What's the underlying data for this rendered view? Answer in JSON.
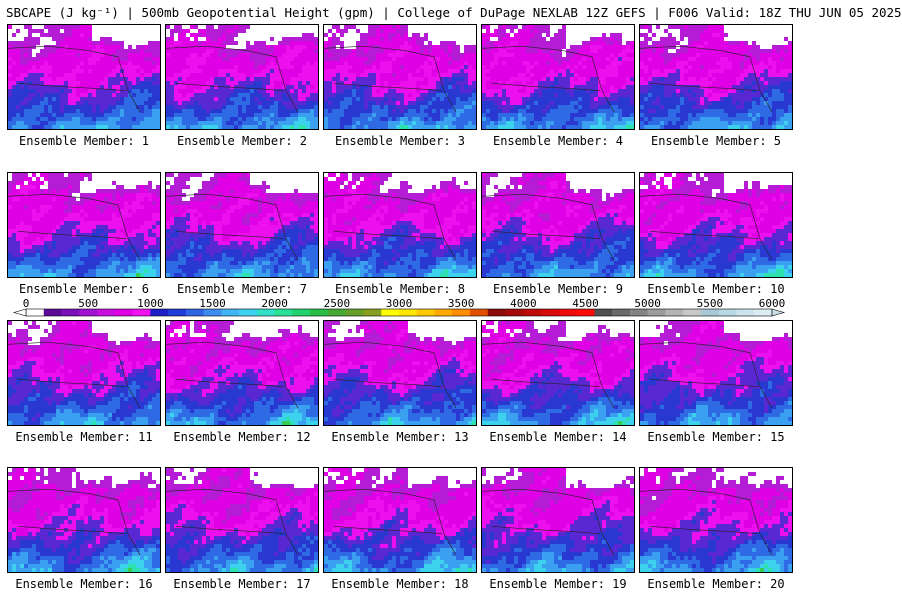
{
  "title": "SBCAPE (J kg⁻¹) | 500mb Geopotential Height (gpm) | College of DuPage NEXLAB 12Z GEFS | F006 Valid: 18Z THU JUN 05 2025",
  "colorbar": {
    "tick_labels": [
      "0",
      "500",
      "1000",
      "1500",
      "2000",
      "2500",
      "3000",
      "3500",
      "4000",
      "4500",
      "5000",
      "5500",
      "6000"
    ],
    "colors": [
      "#ffffff",
      "#5a0a96",
      "#7a10b8",
      "#a012d4",
      "#c80ee0",
      "#e000e6",
      "#f012f0",
      "#1e1ec8",
      "#1e3cd8",
      "#2e64e4",
      "#3c8cf0",
      "#40b4f4",
      "#3cd2f0",
      "#32e0c8",
      "#28e096",
      "#22d26e",
      "#28be46",
      "#46aa32",
      "#66a028",
      "#88a020",
      "#ffff00",
      "#ffe600",
      "#ffc800",
      "#ffaa00",
      "#ff8c00",
      "#e05000",
      "#8b0a0a",
      "#a40a0a",
      "#c00a0a",
      "#d80a0a",
      "#ee0a0a",
      "#ff0a0a",
      "#505050",
      "#6a6a6a",
      "#848484",
      "#9c9c9c",
      "#b4b4b4",
      "#c8c8c8",
      "#a8c8d8",
      "#b8d8e4",
      "#cce4ee",
      "#dceef4"
    ]
  },
  "members": [
    {
      "label": "Ensemble Member: 1"
    },
    {
      "label": "Ensemble Member: 2"
    },
    {
      "label": "Ensemble Member: 3"
    },
    {
      "label": "Ensemble Member: 4"
    },
    {
      "label": "Ensemble Member: 5"
    },
    {
      "label": "Ensemble Member: 6"
    },
    {
      "label": "Ensemble Member: 7"
    },
    {
      "label": "Ensemble Member: 8"
    },
    {
      "label": "Ensemble Member: 9"
    },
    {
      "label": "Ensemble Member: 10"
    },
    {
      "label": "Ensemble Member: 11"
    },
    {
      "label": "Ensemble Member: 12"
    },
    {
      "label": "Ensemble Member: 13"
    },
    {
      "label": "Ensemble Member: 14"
    },
    {
      "label": "Ensemble Member: 15"
    },
    {
      "label": "Ensemble Member: 16"
    },
    {
      "label": "Ensemble Member: 17"
    },
    {
      "label": "Ensemble Member: 18"
    },
    {
      "label": "Ensemble Member: 19"
    },
    {
      "label": "Ensemble Member: 20"
    }
  ]
}
